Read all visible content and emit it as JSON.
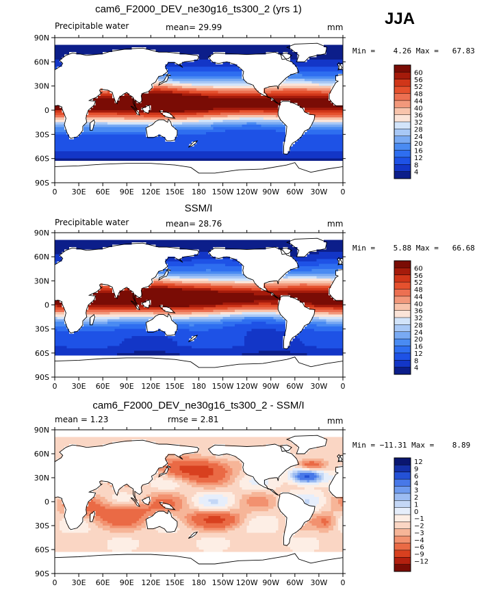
{
  "season": "JJA",
  "panels": [
    {
      "title": "cam6_F2000_DEV_ne30g16_ts300_2 (yrs 1)",
      "left_label": "Precipitable water",
      "center_label": "mean=   29.99",
      "right_label": "mm",
      "minmax": "Min =    4.26 Max =   67.83"
    },
    {
      "title": "SSM/I",
      "left_label": "Precipitable water",
      "center_label": "mean=   28.76",
      "right_label": "mm",
      "minmax": "Min =    5.88 Max =   66.68"
    },
    {
      "title": "cam6_F2000_DEV_ne30g16_ts300_2 - SSM/I",
      "left_label": "mean =     1.23",
      "center_label": "rmse =     2.81",
      "right_label": "mm",
      "minmax": "Min = −11.31 Max =    8.89"
    }
  ],
  "chart_data": [
    {
      "type": "heatmap",
      "title": "cam6_F2000_DEV_ne30g16_ts300_2 (yrs 1)",
      "variable": "Precipitable water",
      "units": "mm",
      "mean": 29.99,
      "min": 4.26,
      "max": 67.83,
      "x_ticks": [
        "0",
        "30E",
        "60E",
        "90E",
        "120E",
        "150E",
        "180",
        "150W",
        "120W",
        "90W",
        "60W",
        "30W",
        "0"
      ],
      "y_ticks": [
        "90N",
        "60N",
        "30N",
        "0",
        "30S",
        "60S",
        "90S"
      ],
      "colorbar_levels": [
        4,
        8,
        12,
        16,
        20,
        24,
        28,
        32,
        36,
        40,
        44,
        48,
        52,
        56,
        60
      ],
      "colorbar_colors": [
        "#0c1e8a",
        "#1336c7",
        "#1e52e6",
        "#2e6ef0",
        "#4a8bf2",
        "#79aaf3",
        "#a8c8f6",
        "#d2e4fa",
        "#fbe4d8",
        "#f8c4ac",
        "#f2987b",
        "#ec7052",
        "#e5512e",
        "#d03619",
        "#a51b0b",
        "#7a0c05"
      ]
    },
    {
      "type": "heatmap",
      "title": "SSM/I",
      "variable": "Precipitable water",
      "units": "mm",
      "mean": 28.76,
      "min": 5.88,
      "max": 66.68,
      "x_ticks": [
        "0",
        "30E",
        "60E",
        "90E",
        "120E",
        "150E",
        "180",
        "150W",
        "120W",
        "90W",
        "60W",
        "30W",
        "0"
      ],
      "y_ticks": [
        "90N",
        "60N",
        "30N",
        "0",
        "30S",
        "60S",
        "90S"
      ],
      "colorbar_levels": [
        4,
        8,
        12,
        16,
        20,
        24,
        28,
        32,
        36,
        40,
        44,
        48,
        52,
        56,
        60
      ],
      "colorbar_colors": [
        "#0c1e8a",
        "#1336c7",
        "#1e52e6",
        "#2e6ef0",
        "#4a8bf2",
        "#79aaf3",
        "#a8c8f6",
        "#d2e4fa",
        "#fbe4d8",
        "#f8c4ac",
        "#f2987b",
        "#ec7052",
        "#e5512e",
        "#d03619",
        "#a51b0b",
        "#7a0c05"
      ]
    },
    {
      "type": "heatmap",
      "title": "cam6_F2000_DEV_ne30g16_ts300_2 - SSM/I",
      "units": "mm",
      "mean": 1.23,
      "rmse": 2.81,
      "min": -11.31,
      "max": 8.89,
      "x_ticks": [
        "0",
        "30E",
        "60E",
        "90E",
        "120E",
        "150E",
        "180",
        "150W",
        "120W",
        "90W",
        "60W",
        "30W",
        "0"
      ],
      "y_ticks": [
        "90N",
        "60N",
        "30N",
        "0",
        "30S",
        "60S",
        "90S"
      ],
      "colorbar_levels": [
        "12",
        "9",
        "6",
        "4",
        "3",
        "2",
        "1",
        "0",
        "−1",
        "−2",
        "−3",
        "−4",
        "−6",
        "−9",
        "−12"
      ],
      "colorbar_colors": [
        "#7a0c05",
        "#b3200f",
        "#d8401f",
        "#ea6a45",
        "#f2916f",
        "#f6b598",
        "#fad6c4",
        "#fdeee5",
        "#e6eefb",
        "#c4d7f6",
        "#9cbcf2",
        "#6f9bee",
        "#4878e8",
        "#2451d6",
        "#1430a8",
        "#0a1670"
      ]
    }
  ]
}
